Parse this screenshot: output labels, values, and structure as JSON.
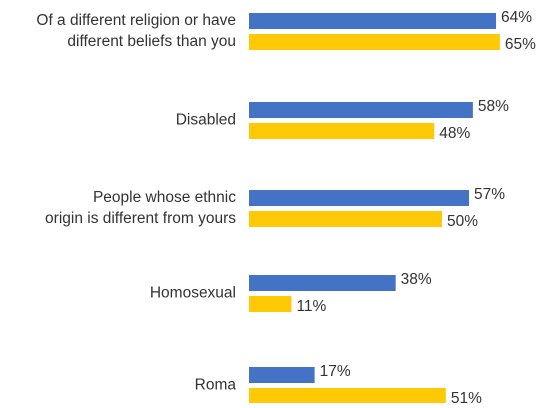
{
  "chart_data": {
    "type": "bar",
    "orientation": "horizontal",
    "categories": [
      [
        "Of a different religion or have",
        "different beliefs than you"
      ],
      [
        "Disabled"
      ],
      [
        "People whose ethnic",
        "origin is different from yours"
      ],
      [
        "Homosexual"
      ],
      [
        "Roma"
      ]
    ],
    "series": [
      {
        "color": "#4472C4",
        "values": [
          64,
          58,
          57,
          38,
          17
        ],
        "labels": [
          "64%",
          "58%",
          "57%",
          "38%",
          "17%"
        ]
      },
      {
        "color": "#FFC905",
        "values": [
          65,
          48,
          50,
          11,
          51
        ],
        "labels": [
          "65%",
          "48%",
          "50%",
          "11%",
          "51%"
        ]
      }
    ],
    "value_unit": "%",
    "xlim": [
      0,
      100
    ],
    "grid": false,
    "legend": "none"
  }
}
